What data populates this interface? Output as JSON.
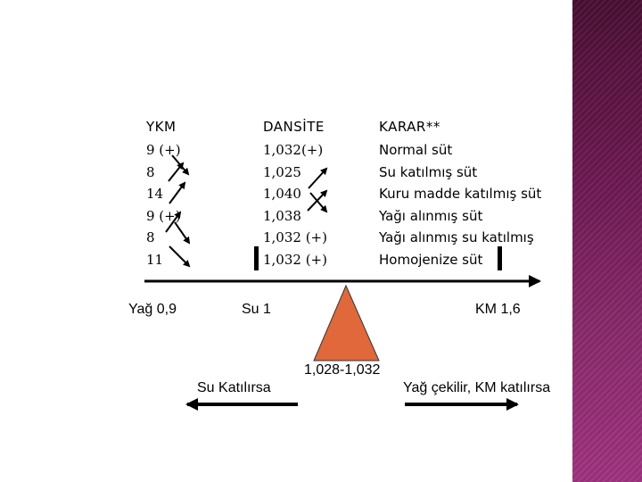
{
  "headers": {
    "ykm": "YKM",
    "dansite": "DANSİTE",
    "karar": "KARAR**"
  },
  "rows": [
    {
      "ykm": "9 (+)",
      "dansite": "1,032(+)",
      "karar": "Normal süt"
    },
    {
      "ykm": "8",
      "dansite": "1,025",
      "karar": "Su katılmış süt"
    },
    {
      "ykm": "14",
      "dansite": "1,040",
      "karar": "Kuru madde katılmış süt"
    },
    {
      "ykm": "9 (+)",
      "dansite": "1,038",
      "karar": "Yağı alınmış süt"
    },
    {
      "ykm": "8",
      "dansite": "1,032 (+)",
      "karar": "Yağı alınmış su katılmış"
    },
    {
      "ykm": "11",
      "dansite": "1,032 (+)",
      "karar": "Homojenize süt"
    }
  ],
  "scale": {
    "left_label": "Yağ 0,9",
    "center_label": "Su 1",
    "right_label": "KM 1,6",
    "fulcrum_label": "1,028-1,032",
    "left_arrow_label": "Su Katılırsa",
    "right_arrow_label": "Yağ çekilir, KM katılırsa"
  },
  "colors": {
    "fulcrum": "#e0683a",
    "side_bar": "#6b1850"
  }
}
